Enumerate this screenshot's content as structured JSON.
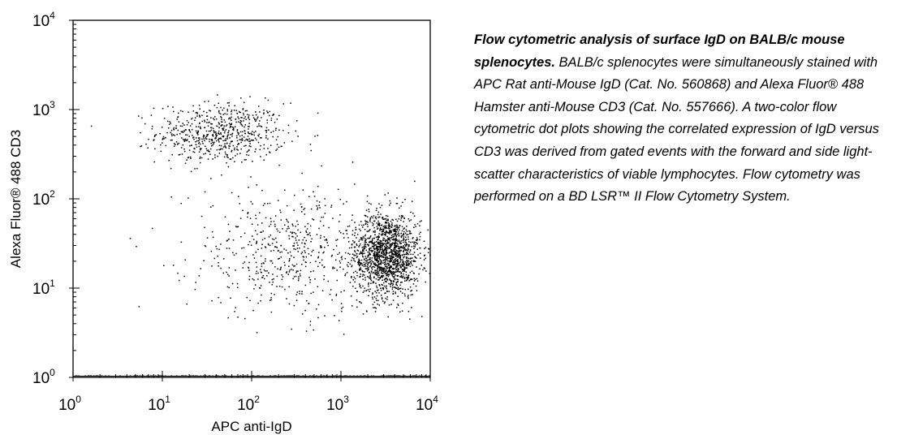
{
  "chart_data": {
    "type": "scatter",
    "title": "",
    "xlabel": "APC anti-IgD",
    "ylabel": "Alexa Fluor® 488 CD3",
    "x_scale": "log",
    "y_scale": "log",
    "xlim": [
      1,
      10000
    ],
    "ylim": [
      1,
      10000
    ],
    "grid": false,
    "x_ticks": [
      {
        "base": "10",
        "exp": "0"
      },
      {
        "base": "10",
        "exp": "1"
      },
      {
        "base": "10",
        "exp": "2"
      },
      {
        "base": "10",
        "exp": "3"
      },
      {
        "base": "10",
        "exp": "4"
      }
    ],
    "y_ticks": [
      {
        "base": "10",
        "exp": "0"
      },
      {
        "base": "10",
        "exp": "1"
      },
      {
        "base": "10",
        "exp": "2"
      },
      {
        "base": "10",
        "exp": "3"
      },
      {
        "base": "10",
        "exp": "4"
      }
    ],
    "populations": [
      {
        "center_x": 45,
        "center_y": 550,
        "spread_log_x": 0.36,
        "spread_log_y": 0.17,
        "approx_events": 650
      },
      {
        "center_x": 3200,
        "center_y": 24,
        "spread_log_x": 0.19,
        "spread_log_y": 0.24,
        "approx_events": 1500
      },
      {
        "center_x": 250,
        "center_y": 25,
        "spread_log_x": 0.55,
        "spread_log_y": 0.35,
        "approx_events": 550
      }
    ],
    "axis_events": {
      "y": 1,
      "x_range": [
        1,
        10000
      ],
      "approx_events": 160
    },
    "point_color": "#000000"
  },
  "caption": {
    "bold": "Flow cytometric analysis of surface IgD on BALB/c mouse splenocytes.",
    "text": " BALB/c splenocytes were simultaneously stained with APC Rat anti-Mouse IgD (Cat. No. 560868) and Alexa Fluor® 488 Hamster anti-Mouse CD3 (Cat. No. 557666). A two-color flow cytometric dot plots showing the correlated expression of IgD versus CD3 was derived from gated events with the forward and side light-scatter characteristics of viable lymphocytes. Flow cytometry was performed on a BD LSR™ II Flow Cytometry System."
  }
}
